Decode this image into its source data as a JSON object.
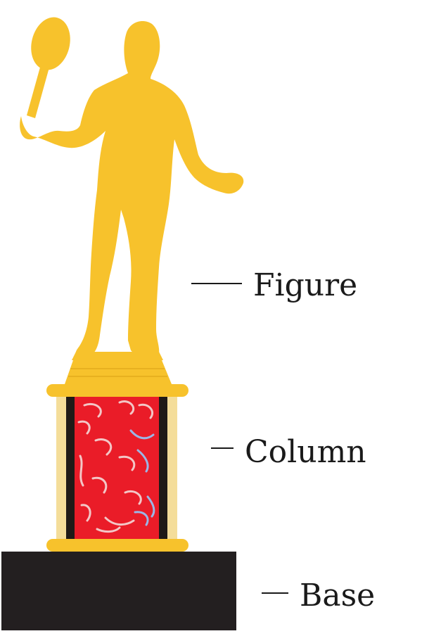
{
  "labels": {
    "figure": "Figure",
    "column": "Column",
    "base": "Base"
  },
  "colors": {
    "gold": "#f7c22c",
    "gold_edge": "#e3ab1c",
    "column_red": "#ea1c28",
    "column_band": "#1f1a17",
    "column_trim": "#f4dd9a",
    "base": "#231f20",
    "squiggle_light": "#f3c6c6",
    "squiggle_blue": "#9bb6e6",
    "leader": "#1a1a1a"
  }
}
